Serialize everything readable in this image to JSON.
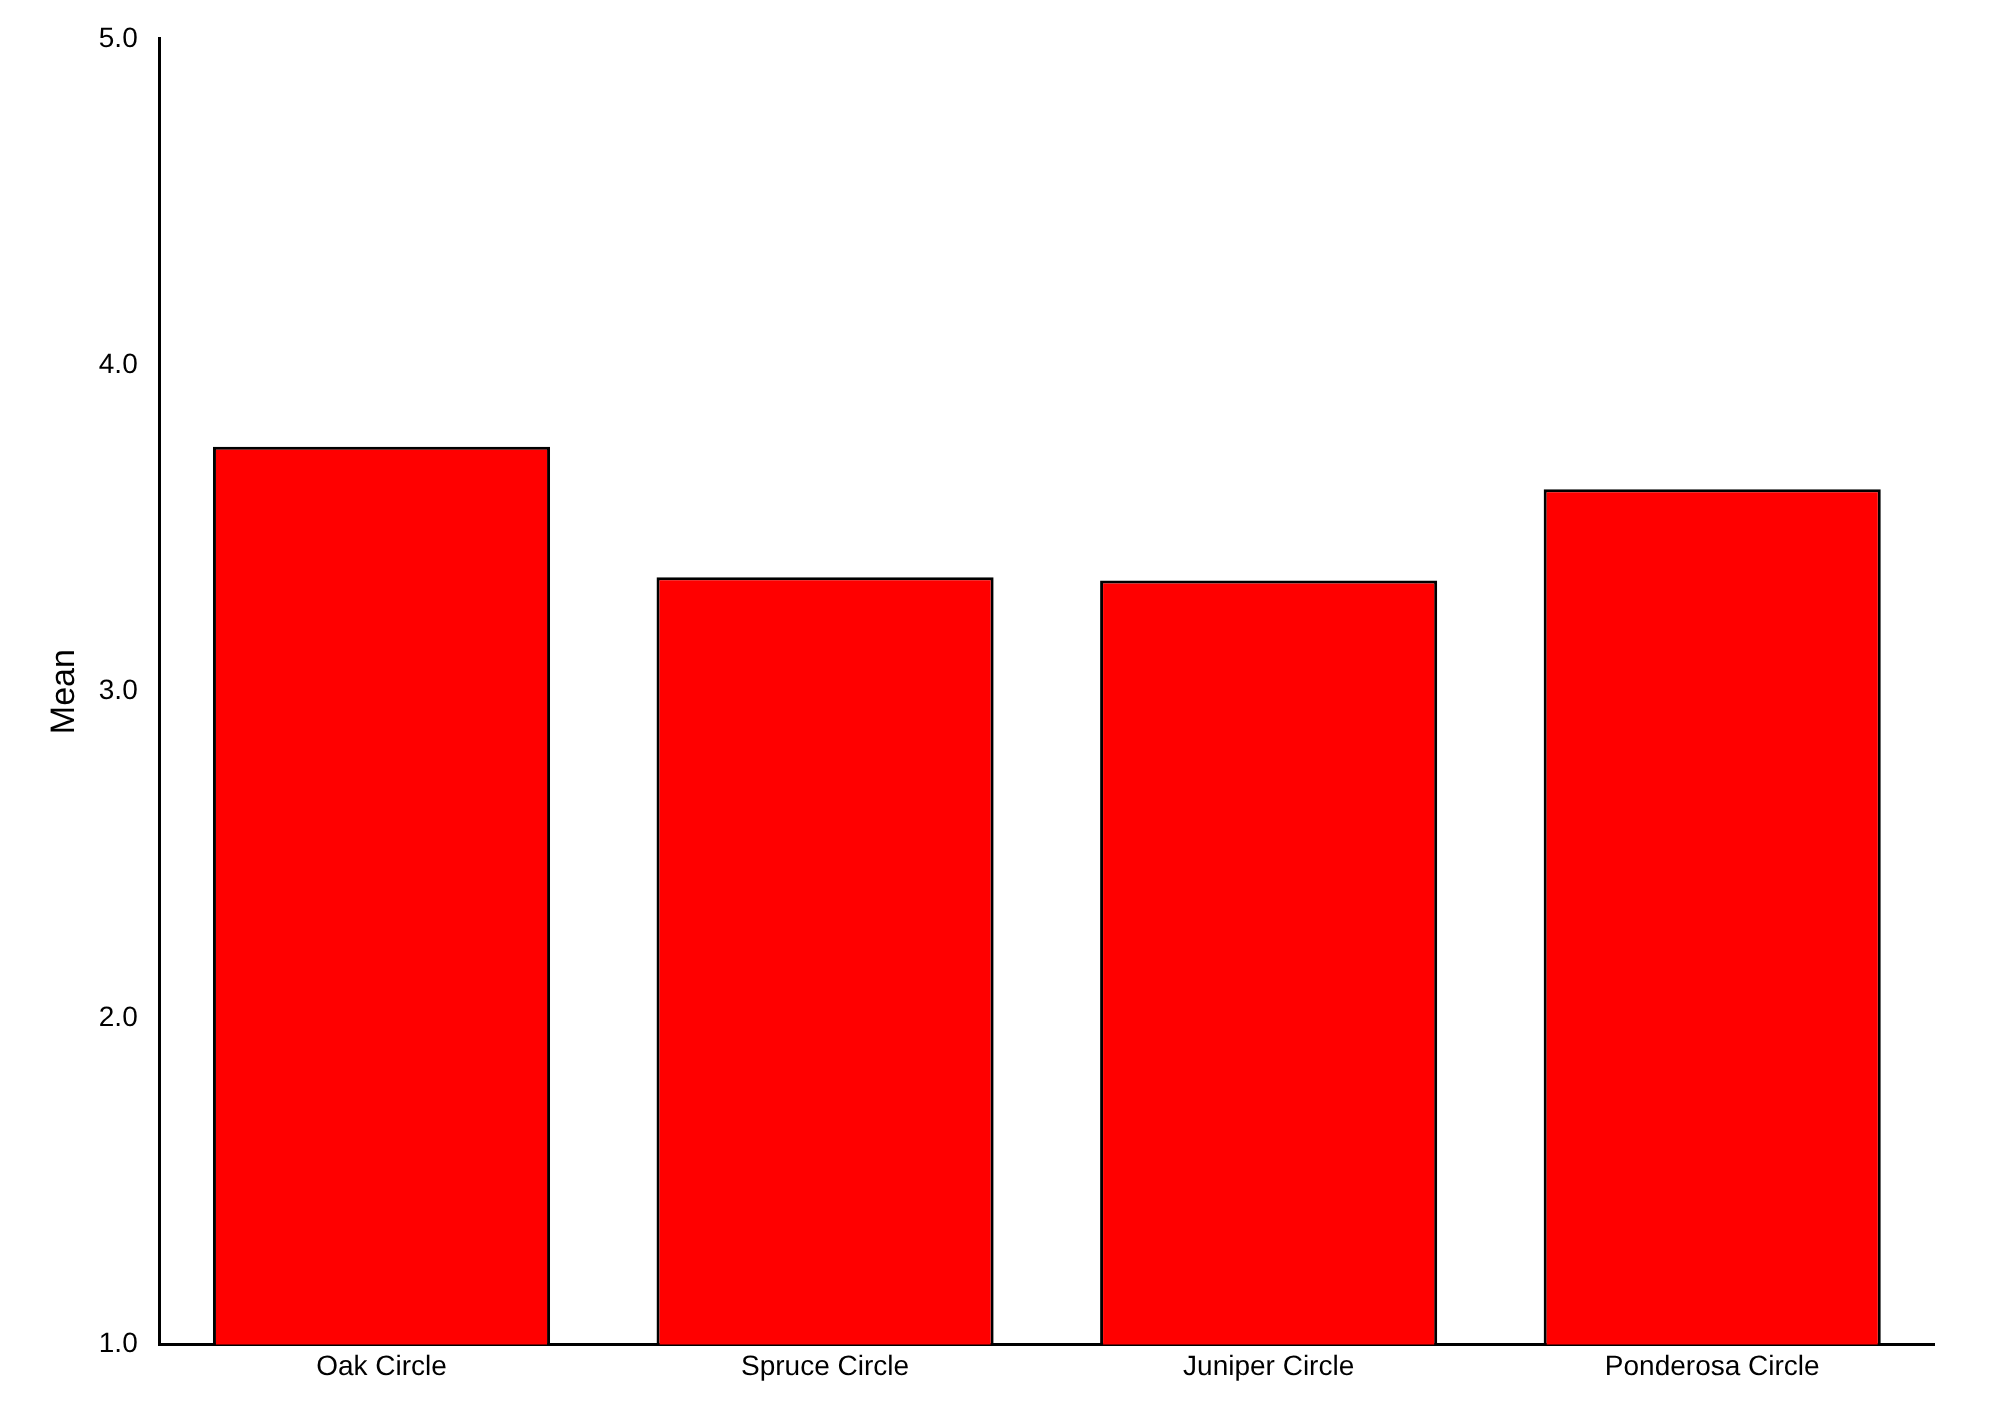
{
  "chart_data": {
    "type": "bar",
    "ylabel": "Mean",
    "categories": [
      "Oak Circle",
      "Spruce Circle",
      "Juniper Circle",
      "Ponderosa Circle"
    ],
    "values": [
      3.75,
      3.35,
      3.34,
      3.62
    ],
    "color": "#ff0000",
    "ylim": [
      1,
      5
    ],
    "yticks": [
      {
        "value": 1,
        "label": "1.0"
      },
      {
        "value": 2,
        "label": "2.0"
      },
      {
        "value": 3,
        "label": "3.0"
      },
      {
        "value": 4,
        "label": "4.0"
      },
      {
        "value": 5,
        "label": "5.0"
      }
    ],
    "grid": false,
    "legend": false
  }
}
